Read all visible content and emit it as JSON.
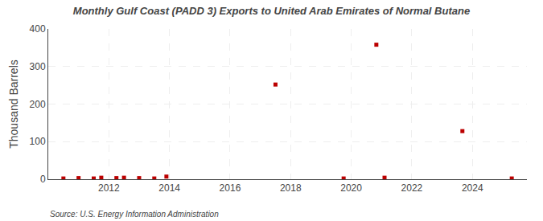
{
  "chart_data": {
    "type": "scatter",
    "title": "Monthly Gulf Coast (PADD 3) Exports to United Arab Emirates of Normal Butane",
    "ylabel": "Thousand Barrels",
    "annotations": [
      "Source: U.S. Energy Information Administration"
    ],
    "x": [
      2010.5,
      2011.0,
      2011.5,
      2011.75,
      2012.25,
      2012.5,
      2013.0,
      2013.5,
      2013.9,
      2017.5,
      2019.75,
      2020.83,
      2021.1,
      2023.67,
      2025.3
    ],
    "values": [
      2,
      3,
      2,
      4,
      3,
      4,
      3,
      2,
      7,
      252,
      2,
      358,
      4,
      128,
      2
    ],
    "color": "#bb0000",
    "marker": "square",
    "xlim": [
      2010.0,
      2025.8
    ],
    "ylim": [
      0,
      400
    ],
    "xticks": [
      2012,
      2014,
      2016,
      2018,
      2020,
      2022,
      2024
    ],
    "yticks": [
      0,
      100,
      200,
      300,
      400
    ],
    "grid": true
  }
}
